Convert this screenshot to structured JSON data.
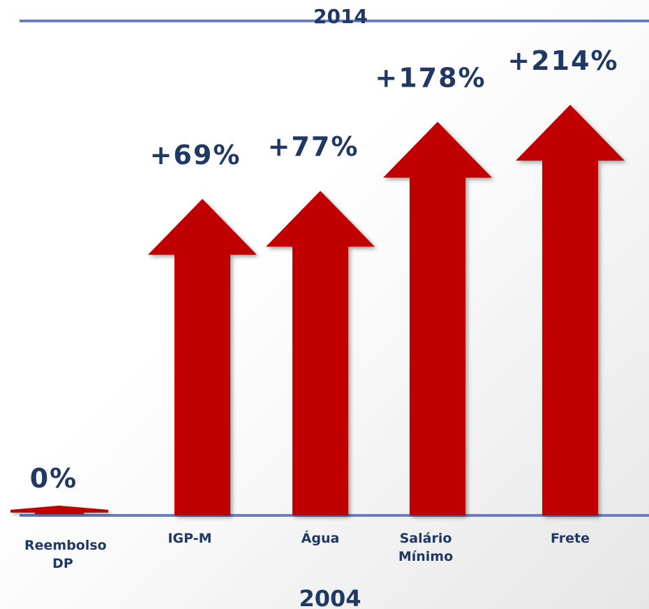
{
  "chart_data": {
    "type": "arrow",
    "title": "2014",
    "x_label": "2004",
    "categories": [
      "Reembolso DP",
      "IGP-M",
      "Água",
      "Salário Mínimo",
      "Frete"
    ],
    "values": [
      0,
      69,
      77,
      178,
      214
    ],
    "value_labels": [
      "0%",
      "+69%",
      "+77%",
      "+178%",
      "+214%"
    ],
    "color": "#c00000"
  }
}
